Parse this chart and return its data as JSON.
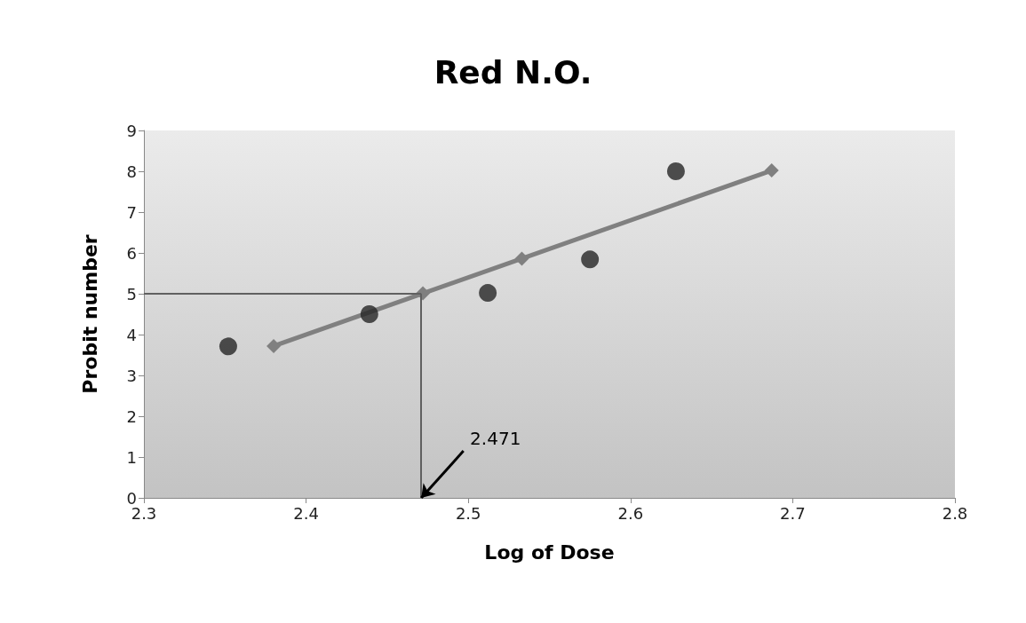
{
  "chart_data": {
    "type": "scatter",
    "title": "Red N.O.",
    "xlabel": "Log of Dose",
    "ylabel": "Probit number",
    "xlim": [
      2.3,
      2.8
    ],
    "xticks": [
      2.3,
      2.4,
      2.5,
      2.6,
      2.7,
      2.8
    ],
    "ylim": [
      0,
      9
    ],
    "yticks": [
      0,
      1,
      2,
      3,
      4,
      5,
      6,
      7,
      8,
      9
    ],
    "grid": false,
    "series": [
      {
        "type": "scatter",
        "marker": "circle",
        "color": "#262626",
        "x": [
          2.352,
          2.439,
          2.512,
          2.575,
          2.628
        ],
        "values": [
          3.71,
          4.5,
          5.02,
          5.84,
          8.0
        ]
      },
      {
        "type": "line",
        "marker": "diamond",
        "line_style": "solid",
        "color": "#808080",
        "x": [
          2.38,
          2.435,
          2.472,
          2.533,
          2.687
        ],
        "values": [
          3.72,
          null,
          5.01,
          5.86,
          8.02
        ]
      }
    ],
    "ref_lines": [
      {
        "axis": "y",
        "value": 5,
        "color": "#606060"
      },
      {
        "axis": "x",
        "value": 2.471,
        "color": "#606060"
      }
    ],
    "annotations": [
      {
        "text": "2.471",
        "x": 2.471,
        "y": 0
      }
    ]
  }
}
